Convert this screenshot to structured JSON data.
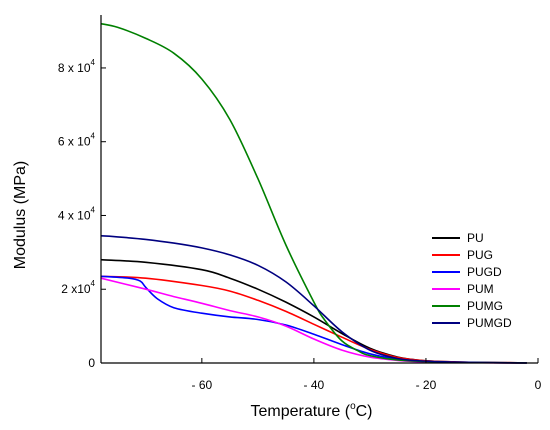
{
  "chart_data": {
    "type": "line",
    "xlabel": "Temperature (",
    "xlabel_sup": "o",
    "xlabel_unit": "C)",
    "ylabel": "Modulus (MPa)",
    "xlim": [
      -78,
      0
    ],
    "ylim": [
      0,
      93000
    ],
    "x_ticks": [
      {
        "value": -60,
        "label": "- 60"
      },
      {
        "value": -40,
        "label": "- 40"
      },
      {
        "value": -20,
        "label": "- 20"
      },
      {
        "value": 0,
        "label": "0"
      }
    ],
    "y_ticks": [
      {
        "value": 0,
        "base": "0",
        "exp": ""
      },
      {
        "value": 20000,
        "base": "2 x10",
        "exp": "4"
      },
      {
        "value": 40000,
        "base": "4 x 10",
        "exp": "4"
      },
      {
        "value": 60000,
        "base": "6 x 10",
        "exp": "4"
      },
      {
        "value": 80000,
        "base": "8 x 10",
        "exp": "4"
      }
    ],
    "grid": false,
    "legend_position": "right",
    "series": [
      {
        "name": "PU",
        "color": "#000000",
        "x": [
          -78,
          -70,
          -60,
          -55,
          -50,
          -45,
          -40,
          -35,
          -30,
          -25,
          -20,
          -15,
          -10,
          -5,
          -2
        ],
        "y": [
          28000,
          27300,
          25300,
          23000,
          20000,
          16500,
          12500,
          8000,
          4000,
          1600,
          600,
          300,
          150,
          80,
          50
        ]
      },
      {
        "name": "PUG",
        "color": "#ff0000",
        "x": [
          -78,
          -70,
          -60,
          -55,
          -50,
          -45,
          -40,
          -35,
          -30,
          -25,
          -20,
          -15,
          -10,
          -5,
          -2
        ],
        "y": [
          23500,
          23000,
          21000,
          19500,
          17000,
          14000,
          10500,
          7000,
          3700,
          1500,
          600,
          300,
          150,
          80,
          50
        ]
      },
      {
        "name": "PUGD",
        "color": "#0000ff",
        "x": [
          -78,
          -73,
          -71,
          -70,
          -68,
          -65,
          -60,
          -55,
          -50,
          -45,
          -40,
          -35,
          -30,
          -25,
          -20,
          -15,
          -10,
          -5,
          -2
        ],
        "y": [
          23500,
          23000,
          22200,
          20500,
          17500,
          15000,
          13500,
          12500,
          11800,
          10300,
          7800,
          5000,
          2500,
          1000,
          400,
          200,
          100,
          50,
          30
        ]
      },
      {
        "name": "PUM",
        "color": "#ff00ff",
        "x": [
          -78,
          -70,
          -65,
          -60,
          -55,
          -50,
          -45,
          -40,
          -35,
          -30,
          -25,
          -20,
          -15,
          -10,
          -5,
          -2
        ],
        "y": [
          23000,
          20000,
          18000,
          16200,
          14200,
          12500,
          10000,
          6500,
          3500,
          1600,
          700,
          300,
          150,
          80,
          40,
          30
        ]
      },
      {
        "name": "PUMG",
        "color": "#008000",
        "x": [
          -78,
          -75,
          -70,
          -65,
          -60,
          -55,
          -50,
          -45,
          -40,
          -38,
          -35,
          -32,
          -30,
          -25,
          -20,
          -15,
          -10,
          -5,
          -2
        ],
        "y": [
          92000,
          91000,
          88000,
          84000,
          77000,
          66000,
          50000,
          32000,
          16500,
          11500,
          6000,
          3200,
          2000,
          800,
          400,
          200,
          100,
          60,
          40
        ]
      },
      {
        "name": "PUMGD",
        "color": "#000080",
        "x": [
          -78,
          -75,
          -70,
          -65,
          -60,
          -55,
          -50,
          -45,
          -40,
          -35,
          -30,
          -25,
          -20,
          -15,
          -10,
          -5,
          -2
        ],
        "y": [
          34500,
          34200,
          33500,
          32500,
          31200,
          29300,
          26500,
          22000,
          15500,
          8500,
          3500,
          1200,
          500,
          250,
          120,
          60,
          40
        ]
      }
    ]
  }
}
